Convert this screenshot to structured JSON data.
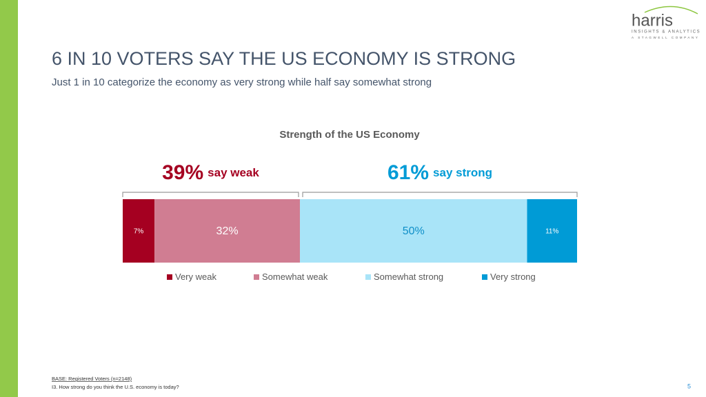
{
  "header": {
    "title": "6 IN 10 VOTERS SAY THE US ECONOMY IS STRONG",
    "subtitle": "Just 1 in 10 categorize the economy as very strong while half say somewhat strong"
  },
  "logo": {
    "name": "harris",
    "tagline": "INSIGHTS & ANALYTICS",
    "parent": "A STAGWELL COMPANY"
  },
  "chart_data": {
    "type": "stacked_bar",
    "orientation": "horizontal",
    "title": "Strength of the US Economy",
    "series": [
      {
        "name": "Very weak",
        "color": "#a50021",
        "values": [
          7
        ],
        "value_labels": [
          "7%"
        ],
        "label_color": "#ffffff"
      },
      {
        "name": "Somewhat weak",
        "color": "#d07d92",
        "values": [
          32
        ],
        "value_labels": [
          "32%"
        ],
        "label_color": "#ffffff"
      },
      {
        "name": "Somewhat strong",
        "color": "#a9e4f8",
        "values": [
          50
        ],
        "value_labels": [
          "50%"
        ],
        "label_color": "#0f8fc8"
      },
      {
        "name": "Very strong",
        "color": "#009bd6",
        "values": [
          11
        ],
        "value_labels": [
          "11%"
        ],
        "label_color": "#ffffff"
      }
    ],
    "annotations": [
      {
        "value": 39,
        "label": "39%",
        "text": "say weak",
        "color": "#a50021"
      },
      {
        "value": 61,
        "label": "61%",
        "text": "say strong",
        "color": "#009bd6"
      }
    ],
    "legend": "bottom"
  },
  "footer": {
    "base": "BASE: Registered Voters (n=2148)",
    "question": "I3. How strong do you think the U.S. economy is today?",
    "page": "5"
  }
}
